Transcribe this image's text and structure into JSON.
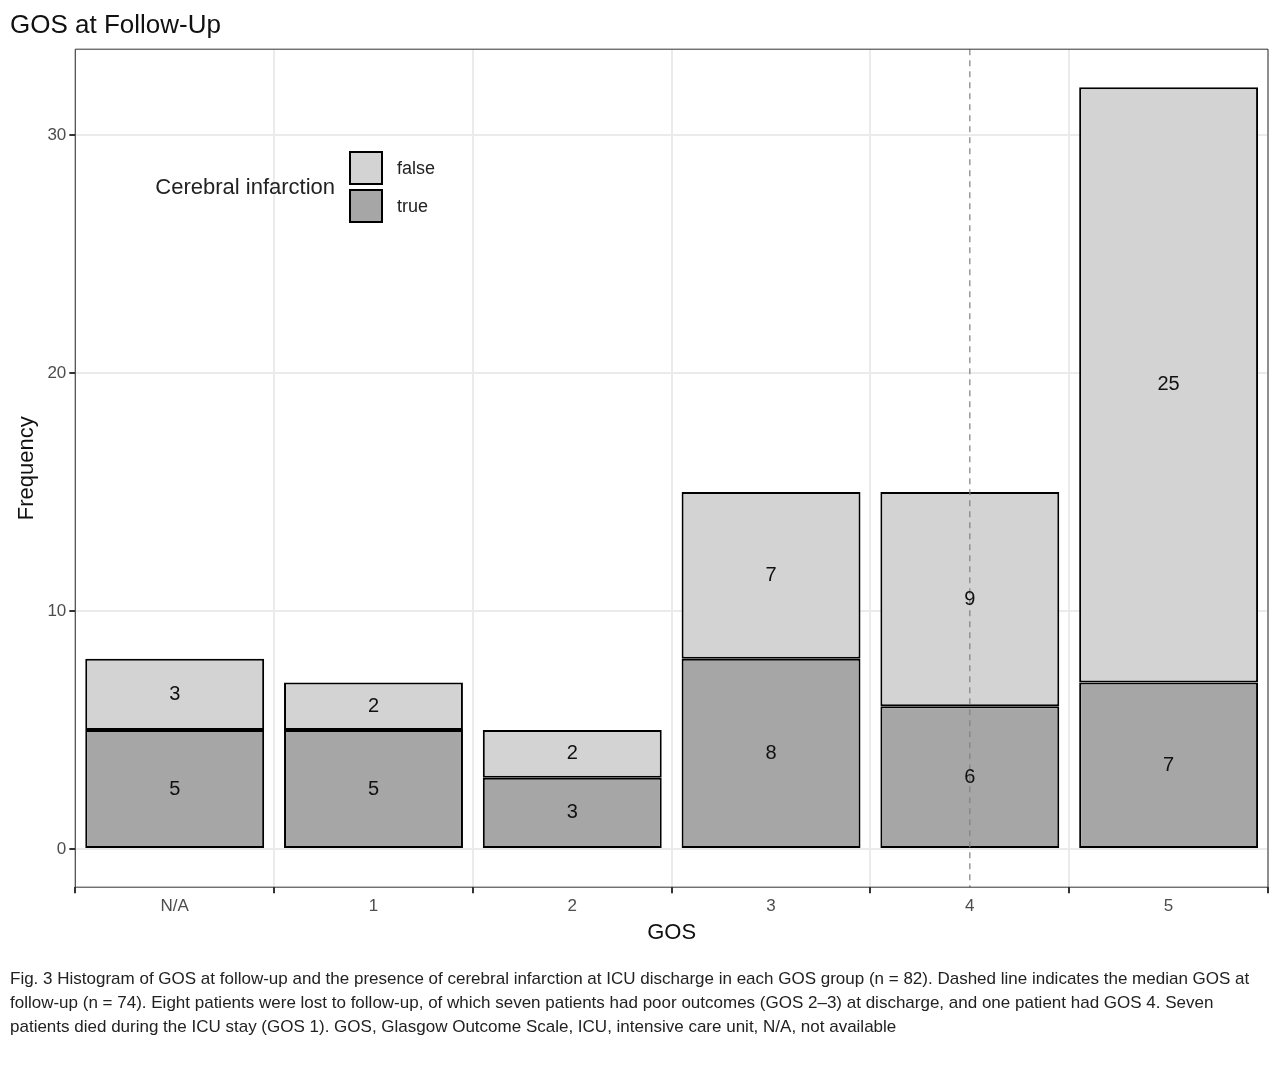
{
  "chart_data": {
    "type": "bar",
    "title": "GOS at Follow-Up",
    "xlabel": "GOS",
    "ylabel": "Frequency",
    "legend_title": "Cerebral infarction",
    "categories": [
      "N/A",
      "1",
      "2",
      "3",
      "4",
      "5"
    ],
    "stacked": true,
    "series": [
      {
        "name": "true",
        "color": "#a6a6a6",
        "values": [
          5,
          5,
          3,
          8,
          6,
          7
        ]
      },
      {
        "name": "false",
        "color": "#d3d3d3",
        "values": [
          3,
          2,
          2,
          7,
          9,
          25
        ]
      }
    ],
    "ylim": [
      -1.6,
      33.6
    ],
    "yticks": [
      0,
      10,
      20,
      30
    ],
    "grid": true,
    "legend": "top left",
    "data_labels": true,
    "ref_lines": [
      {
        "axis": "x",
        "value": "4",
        "color": "#808080",
        "line_style": "dashed"
      }
    ],
    "annotations": [
      "Fig. 3  Histogram of GOS at follow-up and the presence of cerebral infarction at ICU discharge in each GOS group (n = 82). Dashed line indicates the median GOS at follow-up (n = 74). Eight patients were lost to follow-up, of which seven patients had poor outcomes (GOS 2–3) at discharge, and one patient had GOS 4. Seven patients died during the ICU stay (GOS 1). GOS, Glasgow Outcome Scale, ICU, intensive care unit, N/A, not available"
    ]
  }
}
